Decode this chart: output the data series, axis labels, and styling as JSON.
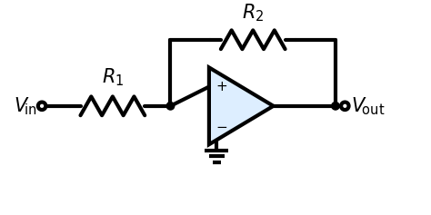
{
  "bg_color": "#ffffff",
  "line_color": "#000000",
  "line_width": 3.0,
  "opamp_fill": "#ddeeff",
  "vin_label": "$V_{\\!\\mathrm{in}}$",
  "vout_label": "$V_{\\!\\mathrm{out}}$",
  "r1_label": "$R_1$",
  "r2_label": "$R_2$",
  "plus_label": "$+$",
  "minus_label": "$-$",
  "font_size_label": 15,
  "font_size_sign": 11,
  "figsize": [
    4.74,
    2.37
  ],
  "dpi": 100,
  "xlim": [
    0,
    9.48
  ],
  "ylim": [
    0,
    4.74
  ]
}
